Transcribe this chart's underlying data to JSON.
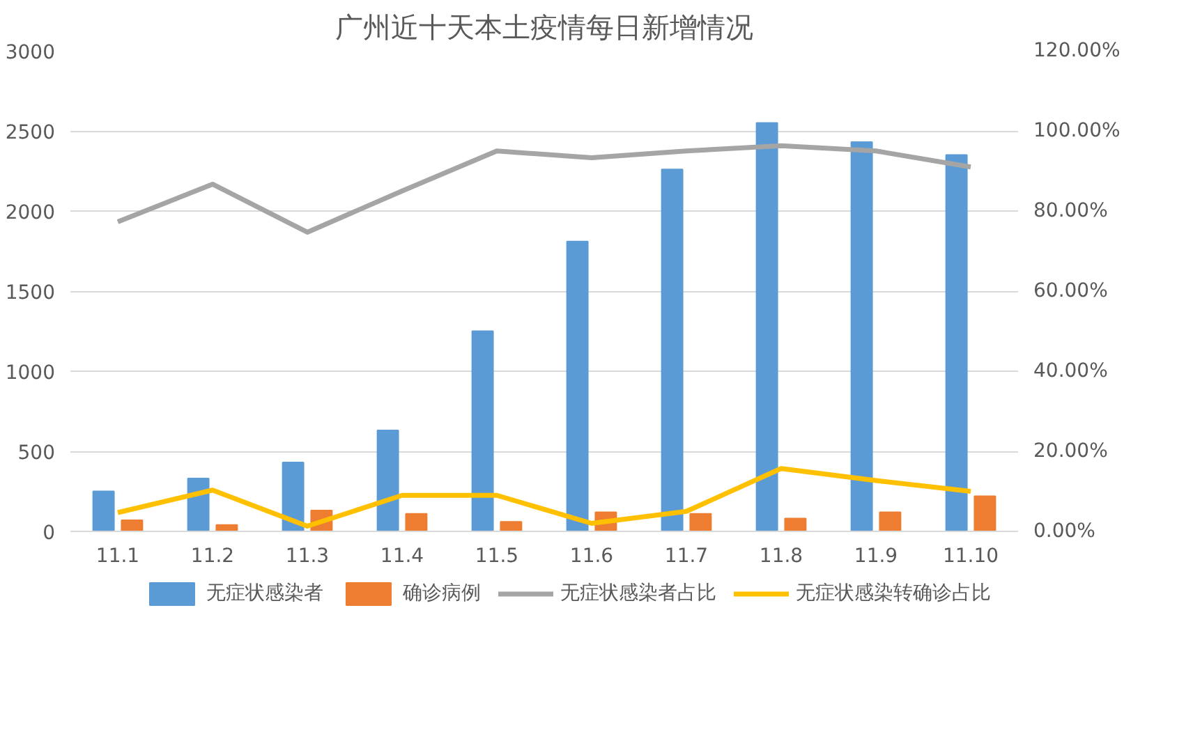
{
  "chart_data": {
    "type": "bar",
    "title": "广州近十天本土疫情每日新增情况",
    "categories": [
      "11.1",
      "11.2",
      "11.3",
      "11.4",
      "11.5",
      "11.6",
      "11.7",
      "11.8",
      "11.9",
      "11.10"
    ],
    "series": [
      {
        "name": "无症状感染者",
        "color": "#5b9bd5",
        "values": [
          250,
          330,
          430,
          630,
          1250,
          1810,
          2260,
          2550,
          2430,
          2350
        ]
      },
      {
        "name": "确诊病例",
        "color": "#ed7d31",
        "values": [
          70,
          40,
          130,
          110,
          60,
          120,
          110,
          80,
          120,
          220
        ]
      },
      {
        "name": "无症状感染者占比",
        "type": "line",
        "axis": "y2",
        "color": "#a5a5a5",
        "values": [
          77.3,
          86.7,
          74.7,
          85,
          95,
          93.3,
          95,
          96.3,
          95,
          91
        ]
      },
      {
        "name": "无症状感染转确诊占比",
        "type": "line",
        "axis": "y2",
        "color": "#ffc000",
        "values": [
          4.7,
          10.3,
          1.3,
          9,
          9,
          2,
          5,
          15.7,
          12.7,
          10
        ]
      }
    ],
    "ylim": [
      0,
      3000
    ],
    "yticks": [
      0,
      500,
      1000,
      1500,
      2000,
      2500,
      3000
    ],
    "y2lim": [
      0,
      120
    ],
    "y2ticks": [
      {
        "value": 0,
        "label": "0.00%"
      },
      {
        "value": 20,
        "label": "20.00%"
      },
      {
        "value": 40,
        "label": "40.00%"
      },
      {
        "value": 60,
        "label": "60.00%"
      },
      {
        "value": 80,
        "label": "80.00%"
      },
      {
        "value": 100,
        "label": "100.00%"
      },
      {
        "value": 120,
        "label": "120.00%"
      }
    ],
    "grid": "y",
    "legend": "bottom",
    "line_style": "solid",
    "marker": "none"
  }
}
